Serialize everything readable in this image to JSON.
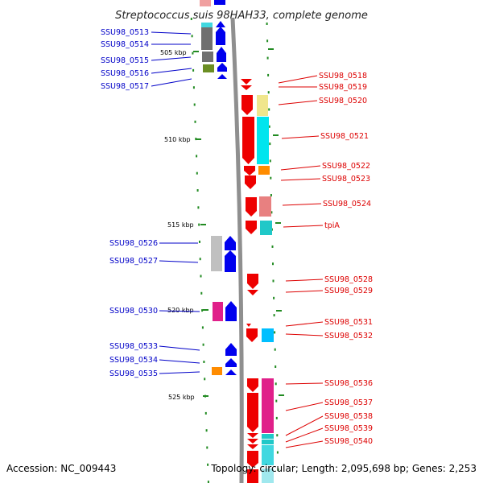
{
  "title": "Streptococcus suis 98HAH33, complete genome",
  "accession_text": "Accession: NC_009443",
  "summary_text": "Topology: circular; Length: 2,095,698 bp; Genes: 2,253",
  "colors": {
    "forward_label": "#0000c8",
    "reverse_label": "#dd0000",
    "forward_cds": "#0000ee",
    "reverse_cds": "#ee0000",
    "backbone": "#888888",
    "tick": "#228b22"
  },
  "scale_marks": [
    "505 kbp",
    "510 kbp",
    "515 kbp",
    "520 kbp",
    "525 kbp"
  ],
  "left_labels": [
    {
      "id": "lbl-0513",
      "text": "SSU98_0513"
    },
    {
      "id": "lbl-0514",
      "text": "SSU98_0514"
    },
    {
      "id": "lbl-0515",
      "text": "SSU98_0515"
    },
    {
      "id": "lbl-0516",
      "text": "SSU98_0516"
    },
    {
      "id": "lbl-0517",
      "text": "SSU98_0517"
    },
    {
      "id": "lbl-0526",
      "text": "SSU98_0526"
    },
    {
      "id": "lbl-0527",
      "text": "SSU98_0527"
    },
    {
      "id": "lbl-0530",
      "text": "SSU98_0530"
    },
    {
      "id": "lbl-0533",
      "text": "SSU98_0533"
    },
    {
      "id": "lbl-0534",
      "text": "SSU98_0534"
    },
    {
      "id": "lbl-0535",
      "text": "SSU98_0535"
    }
  ],
  "right_labels": [
    {
      "id": "lbl-0518",
      "text": "SSU98_0518"
    },
    {
      "id": "lbl-0519",
      "text": "SSU98_0519"
    },
    {
      "id": "lbl-0520",
      "text": "SSU98_0520"
    },
    {
      "id": "lbl-0521",
      "text": "SSU98_0521"
    },
    {
      "id": "lbl-0522",
      "text": "SSU98_0522"
    },
    {
      "id": "lbl-0523",
      "text": "SSU98_0523"
    },
    {
      "id": "lbl-0524",
      "text": "SSU98_0524"
    },
    {
      "id": "lbl-tpiA",
      "text": "tpiA"
    },
    {
      "id": "lbl-0528",
      "text": "SSU98_0528"
    },
    {
      "id": "lbl-0529",
      "text": "SSU98_0529"
    },
    {
      "id": "lbl-0531",
      "text": "SSU98_0531"
    },
    {
      "id": "lbl-0532",
      "text": "SSU98_0532"
    },
    {
      "id": "lbl-0536",
      "text": "SSU98_0536"
    },
    {
      "id": "lbl-0537",
      "text": "SSU98_0537"
    },
    {
      "id": "lbl-0538",
      "text": "SSU98_0538"
    },
    {
      "id": "lbl-0539",
      "text": "SSU98_0539"
    },
    {
      "id": "lbl-0540",
      "text": "SSU98_0540"
    }
  ]
}
